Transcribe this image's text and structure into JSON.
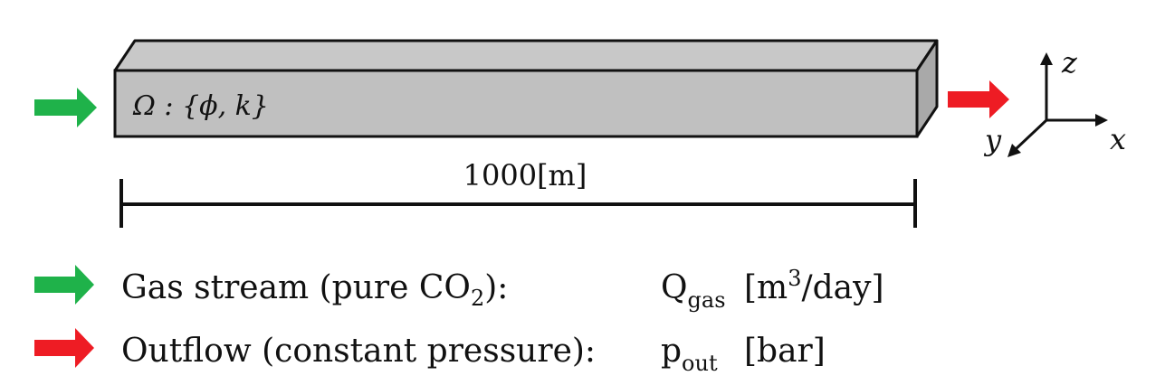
{
  "domain_text": {
    "domain_label": "Ω : {ϕ, k}",
    "length_label": "1000[m]"
  },
  "axes": {
    "x": "x",
    "y": "y",
    "z": "z"
  },
  "legend": {
    "inflow": {
      "text_pre": "Gas stream (pure CO",
      "text_sub": "2",
      "text_post": "):",
      "symbol_main": "Q",
      "symbol_sub": "gas",
      "unit_pre": "[m",
      "unit_sup": "3",
      "unit_post": "/day]",
      "color": "#1fb24a"
    },
    "outflow": {
      "text": "Outflow (constant pressure):",
      "symbol_main": "p",
      "symbol_sub": "out",
      "unit": "[bar]",
      "color": "#ee1c24"
    }
  },
  "colors": {
    "beam_front": "#c0c0c0",
    "beam_top": "#c8c8c8",
    "beam_side": "#a9a9a9",
    "inflow_arrow": "#1fb24a",
    "outflow_arrow": "#ee1c24"
  }
}
